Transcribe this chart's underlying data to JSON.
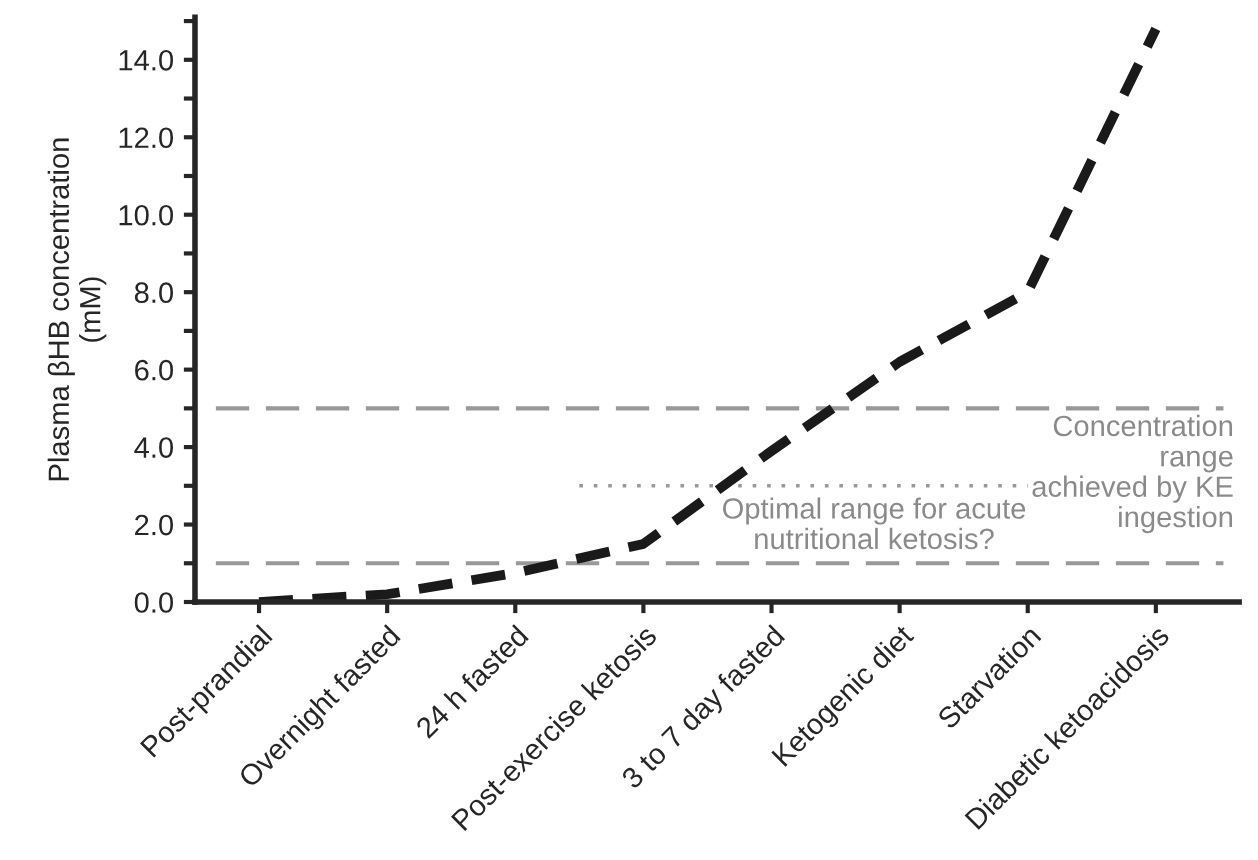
{
  "chart_data": {
    "type": "line",
    "ylabel": "Plasma βHB concentration\n(mM)",
    "categories": [
      "Post-prandial",
      "Overnight fasted",
      "24 h fasted",
      "Post-exercise ketosis",
      "3 to 7 day fasted",
      "Ketogenic diet",
      "Starvation",
      "Diabetic ketoacidosis"
    ],
    "series": [
      {
        "color": "#1a1a1a",
        "values": [
          0.0,
          0.2,
          0.75,
          1.5,
          3.9,
          6.2,
          8.0,
          14.8
        ]
      }
    ],
    "line_style": "dashed",
    "marker": "none",
    "grid": false,
    "legend": false,
    "ylim": [
      0,
      15.1
    ],
    "yticks": [
      {
        "value": 0,
        "label": "0.0"
      },
      {
        "value": 1,
        "label": null
      },
      {
        "value": 2,
        "label": "2.0"
      },
      {
        "value": 3,
        "label": null
      },
      {
        "value": 4,
        "label": "4.0"
      },
      {
        "value": 5,
        "label": null
      },
      {
        "value": 6,
        "label": "6.0"
      },
      {
        "value": 7,
        "label": null
      },
      {
        "value": 8,
        "label": "8.0"
      },
      {
        "value": 9,
        "label": null
      },
      {
        "value": 10,
        "label": "10.0"
      },
      {
        "value": 11,
        "label": null
      },
      {
        "value": 12,
        "label": "12.0"
      },
      {
        "value": 13,
        "label": null
      },
      {
        "value": 14,
        "label": "14.0"
      },
      {
        "value": 15,
        "label": null
      }
    ],
    "ref_lines": [
      {
        "axis": "y",
        "value": 5,
        "label": null,
        "color": "#999999",
        "line_style": "dashed"
      },
      {
        "axis": "y",
        "value": 1,
        "label": null,
        "color": "#999999",
        "line_style": "dashed"
      },
      {
        "axis": "y",
        "value": 3,
        "label": "Optimal range for acute\nnutritional ketosis?",
        "color": "#999999",
        "line_style": "dotted"
      }
    ],
    "annotations": [
      "Concentration\nrange\nachieved by KE\ningestion"
    ]
  }
}
